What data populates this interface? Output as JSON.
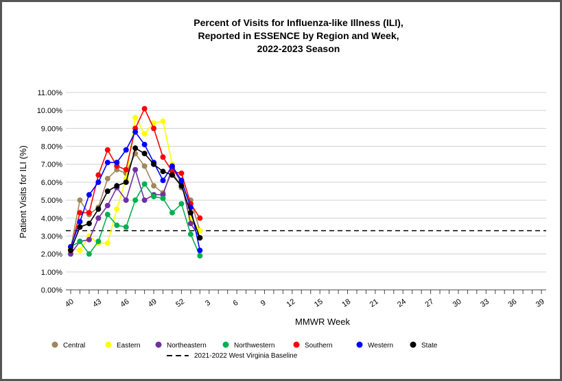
{
  "chart_data": {
    "type": "line",
    "title_lines": [
      "Percent of Visits for Influenza-like Illness (ILI),",
      "Reported in ESSENCE by Region and Week,",
      "2022-2023 Season"
    ],
    "xlabel": "MMWR Week",
    "ylabel": "Patient Visits for ILI (%)",
    "ylim": [
      0,
      11
    ],
    "y_ticks": [
      "0.00%",
      "1.00%",
      "2.00%",
      "3.00%",
      "4.00%",
      "5.00%",
      "6.00%",
      "7.00%",
      "8.00%",
      "9.00%",
      "10.00%",
      "11.00%"
    ],
    "x_weeks": [
      40,
      41,
      42,
      43,
      44,
      45,
      46,
      47,
      48,
      49,
      50,
      51,
      52,
      1,
      2,
      3,
      4,
      5,
      6,
      7,
      8,
      9,
      10,
      11,
      12,
      13,
      14,
      15,
      16,
      17,
      18,
      19,
      20,
      21,
      22,
      23,
      24,
      25,
      26,
      27,
      28,
      29,
      30,
      31,
      32,
      33,
      34,
      35,
      36,
      37,
      38,
      39
    ],
    "x_tick_labels": [
      "40",
      "43",
      "46",
      "49",
      "52",
      "3",
      "6",
      "9",
      "12",
      "15",
      "18",
      "21",
      "24",
      "27",
      "30",
      "33",
      "36",
      "39"
    ],
    "grid": "horizontal",
    "legend_position": "bottom",
    "series": [
      {
        "name": "Central",
        "color": "#a0865a",
        "values": [
          2.3,
          5.0,
          4.2,
          4.6,
          6.2,
          6.7,
          6.5,
          7.6,
          6.9,
          5.8,
          5.4,
          6.6,
          5.7,
          5.0,
          3.3
        ]
      },
      {
        "name": "Eastern",
        "color": "#ffff00",
        "values": [
          2.3,
          2.2,
          3.0,
          2.6,
          2.6,
          4.5,
          6.2,
          9.6,
          8.7,
          9.3,
          9.4,
          7.0,
          6.0,
          4.0,
          3.3
        ]
      },
      {
        "name": "Northeastern",
        "color": "#7030a0",
        "values": [
          2.0,
          2.7,
          2.8,
          4.0,
          4.7,
          5.7,
          5.0,
          6.7,
          5.0,
          5.3,
          5.3,
          6.8,
          6.0,
          3.7,
          2.9
        ]
      },
      {
        "name": "Northwestern",
        "color": "#00b050",
        "values": [
          2.4,
          2.7,
          2.0,
          2.7,
          4.2,
          3.6,
          3.5,
          5.0,
          5.9,
          5.2,
          5.1,
          4.3,
          4.8,
          3.1,
          1.9
        ]
      },
      {
        "name": "Southern",
        "color": "#ff0000",
        "values": [
          2.2,
          4.3,
          4.3,
          6.4,
          7.8,
          6.9,
          6.7,
          9.0,
          10.1,
          9.0,
          7.4,
          6.6,
          6.5,
          4.8,
          4.0
        ]
      },
      {
        "name": "Western",
        "color": "#0000ff",
        "values": [
          2.4,
          3.8,
          5.3,
          6.0,
          7.1,
          7.1,
          7.8,
          8.8,
          8.1,
          7.1,
          6.1,
          6.9,
          6.1,
          4.6,
          2.2
        ]
      },
      {
        "name": "State",
        "color": "#000000",
        "values": [
          2.2,
          3.5,
          3.7,
          4.5,
          5.5,
          5.8,
          6.0,
          7.9,
          7.6,
          7.0,
          6.6,
          6.4,
          5.8,
          4.3,
          2.9
        ]
      }
    ],
    "baseline": {
      "name": "2021-2022 West Virginia Baseline",
      "value": 3.3,
      "color": "#000000"
    }
  }
}
